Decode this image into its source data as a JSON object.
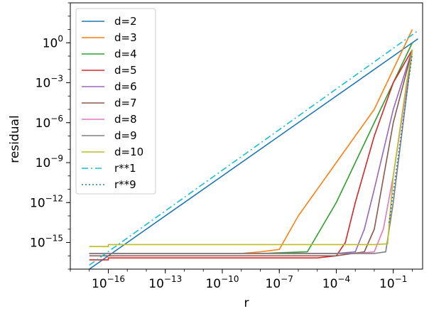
{
  "chart_data": {
    "type": "line",
    "xlabel": "r",
    "ylabel": "residual",
    "xscale": "log",
    "yscale": "log",
    "xlim": [
      1e-18,
      3.5
    ],
    "ylim": [
      1e-17,
      1000.0
    ],
    "grid": false,
    "legend_position": "top-left",
    "x_ticks": [
      {
        "value": 1e-16,
        "base": "10",
        "exp": "−16"
      },
      {
        "value": 1e-13,
        "base": "10",
        "exp": "−13"
      },
      {
        "value": 1e-10,
        "base": "10",
        "exp": "−10"
      },
      {
        "value": 1e-07,
        "base": "10",
        "exp": "−7"
      },
      {
        "value": 0.0001,
        "base": "10",
        "exp": "−4"
      },
      {
        "value": 0.1,
        "base": "10",
        "exp": "−1"
      }
    ],
    "y_ticks": [
      {
        "value": 1,
        "base": "10",
        "exp": "0"
      },
      {
        "value": 0.001,
        "base": "10",
        "exp": "−3"
      },
      {
        "value": 1e-06,
        "base": "10",
        "exp": "−6"
      },
      {
        "value": 1e-09,
        "base": "10",
        "exp": "−9"
      },
      {
        "value": 1e-12,
        "base": "10",
        "exp": "−12"
      },
      {
        "value": 1e-15,
        "base": "10",
        "exp": "−15"
      }
    ],
    "series": [
      {
        "name": "d=2",
        "color": "#1f77b4",
        "dash": "solid",
        "points": [
          [
            1e-17,
            1e-17
          ],
          [
            2e-17,
            2e-17
          ],
          [
            6e-17,
            6e-17
          ],
          [
            1e-16,
            1e-16
          ],
          [
            1,
            1
          ],
          [
            2,
            2
          ]
        ]
      },
      {
        "name": "d=3",
        "color": "#ff7f0e",
        "dash": "solid",
        "points": [
          [
            1e-17,
            1.5e-16
          ],
          [
            1e-15,
            1.5e-16
          ],
          [
            1e-12,
            1.5e-16
          ],
          [
            1e-09,
            1.5e-16
          ],
          [
            1e-08,
            2e-16
          ],
          [
            1e-07,
            3e-16
          ],
          [
            1e-06,
            1e-13
          ],
          [
            0.0001,
            1e-09
          ],
          [
            0.01,
            1e-05
          ],
          [
            1,
            10
          ]
        ]
      },
      {
        "name": "d=4",
        "color": "#2ca02c",
        "dash": "solid",
        "points": [
          [
            1e-17,
            1.5e-16
          ],
          [
            1e-12,
            1.5e-16
          ],
          [
            1e-08,
            1.5e-16
          ],
          [
            3e-06,
            2e-16
          ],
          [
            0.0001,
            1e-12
          ],
          [
            0.001,
            1e-09
          ],
          [
            0.01,
            1e-06
          ],
          [
            0.1,
            0.001
          ],
          [
            1,
            1
          ]
        ]
      },
      {
        "name": "d=5",
        "color": "#d62728",
        "dash": "solid",
        "points": [
          [
            1e-17,
            5e-17
          ],
          [
            1e-16,
            5e-17
          ],
          [
            1e-16,
            7e-17
          ],
          [
            1e-12,
            7e-17
          ],
          [
            1e-08,
            7e-17
          ],
          [
            1e-05,
            7e-17
          ],
          [
            0.0001,
            1e-16
          ],
          [
            0.0003,
            1e-15
          ],
          [
            0.001,
            1e-12
          ],
          [
            0.01,
            1e-07
          ],
          [
            0.1,
            0.001
          ],
          [
            1,
            0.3
          ]
        ]
      },
      {
        "name": "d=6",
        "color": "#9467bd",
        "dash": "solid",
        "points": [
          [
            1e-17,
            1.5e-16
          ],
          [
            1e-12,
            1.5e-16
          ],
          [
            1e-08,
            1.5e-16
          ],
          [
            0.0001,
            1.5e-16
          ],
          [
            0.001,
            2e-16
          ],
          [
            0.003,
            1e-14
          ],
          [
            0.01,
            1e-11
          ],
          [
            0.1,
            1e-05
          ],
          [
            1,
            0.3
          ]
        ]
      },
      {
        "name": "d=7",
        "color": "#8c564b",
        "dash": "solid",
        "points": [
          [
            1e-17,
            1e-16
          ],
          [
            1e-12,
            1e-16
          ],
          [
            1e-08,
            1e-16
          ],
          [
            0.0001,
            1e-16
          ],
          [
            0.003,
            2e-16
          ],
          [
            0.01,
            1e-14
          ],
          [
            0.1,
            1e-06
          ],
          [
            1,
            0.3
          ]
        ]
      },
      {
        "name": "d=8",
        "color": "#e377c2",
        "dash": "solid",
        "points": [
          [
            1e-17,
            1.5e-16
          ],
          [
            1e-12,
            1.5e-16
          ],
          [
            1e-08,
            1.5e-16
          ],
          [
            0.001,
            1.5e-16
          ],
          [
            0.01,
            2e-16
          ],
          [
            0.03,
            1e-14
          ],
          [
            0.1,
            1e-10
          ],
          [
            1,
            0.3
          ]
        ]
      },
      {
        "name": "d=9",
        "color": "#7f7f7f",
        "dash": "solid",
        "points": [
          [
            1e-17,
            1.5e-16
          ],
          [
            1e-12,
            1.5e-16
          ],
          [
            1e-08,
            1.5e-16
          ],
          [
            0.01,
            1.5e-16
          ],
          [
            0.04,
            2e-16
          ],
          [
            0.1,
            1e-12
          ],
          [
            1,
            0.3
          ]
        ]
      },
      {
        "name": "d=10",
        "color": "#bcbd22",
        "dash": "solid",
        "points": [
          [
            1e-17,
            5e-16
          ],
          [
            1e-16,
            5e-16
          ],
          [
            1e-16,
            7e-16
          ],
          [
            1e-12,
            7e-16
          ],
          [
            1e-08,
            7e-16
          ],
          [
            0.0001,
            7e-16
          ],
          [
            0.01,
            7e-16
          ],
          [
            0.05,
            8e-16
          ],
          [
            0.1,
            1e-10
          ],
          [
            0.5,
            0.001
          ],
          [
            1,
            0.3
          ]
        ]
      },
      {
        "name": "r**1",
        "color": "#17becf",
        "dash": "dashdot",
        "points": [
          [
            1e-17,
            2e-17
          ],
          [
            1,
            4
          ],
          [
            2,
            8
          ]
        ]
      },
      {
        "name": "r**9",
        "color": "#1f77b4",
        "dash": "dotted",
        "points": [
          [
            0.06,
            3e-14
          ],
          [
            1,
            0.15
          ]
        ]
      }
    ]
  }
}
